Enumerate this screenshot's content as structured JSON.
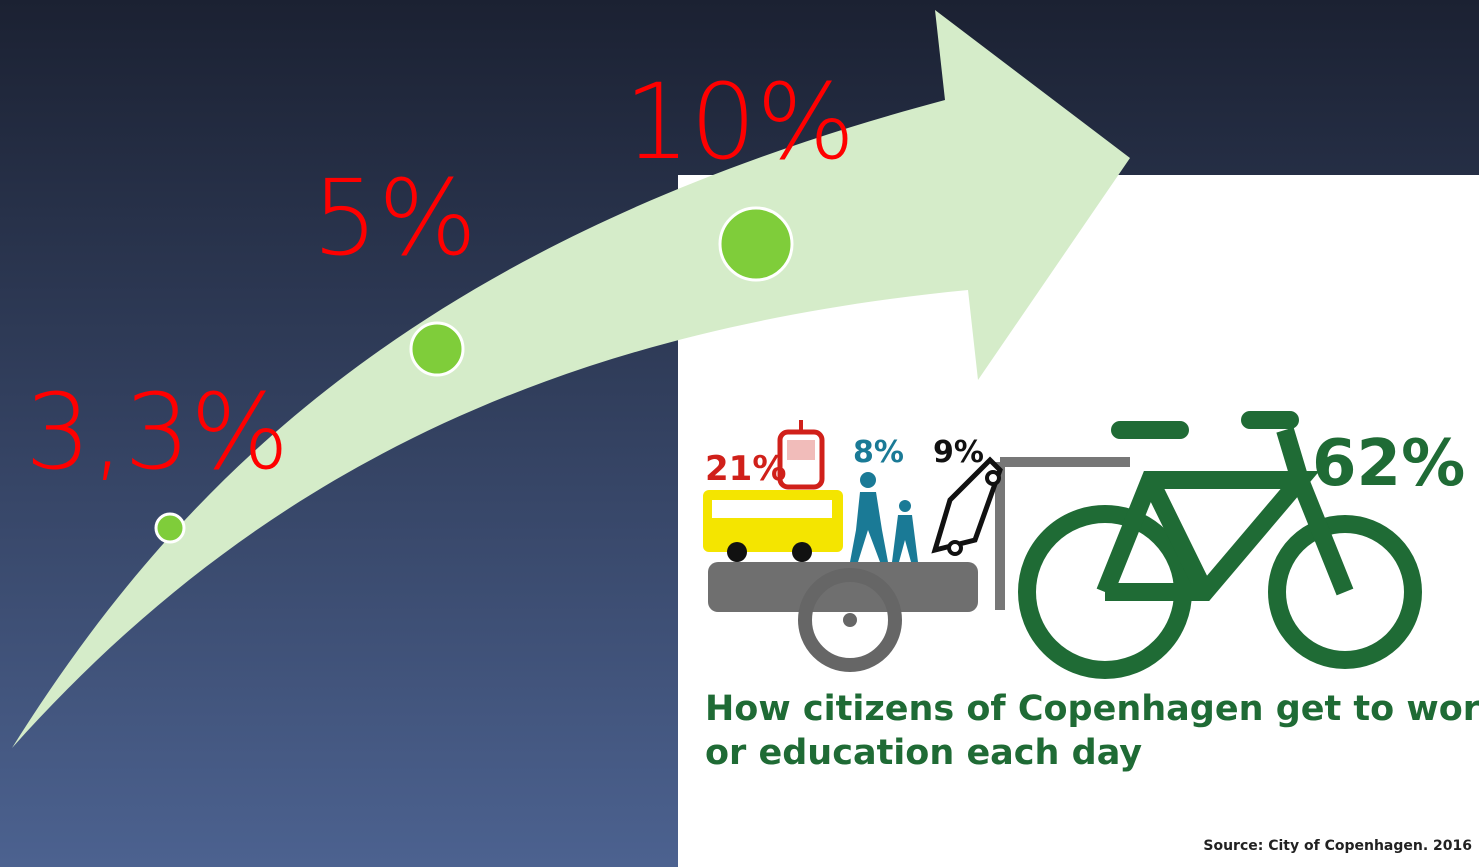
{
  "growth": {
    "labels": [
      "3,3%",
      "5%",
      "10%"
    ]
  },
  "infographic": {
    "modes": [
      {
        "label": "21%"
      },
      {
        "label": "8%"
      },
      {
        "label": "9%"
      },
      {
        "label": "62%"
      }
    ],
    "title_lines": [
      "How citizens of Copenhagen get to work",
      "or education each day"
    ],
    "source": "Source: City of Copenhagen. 2016"
  }
}
